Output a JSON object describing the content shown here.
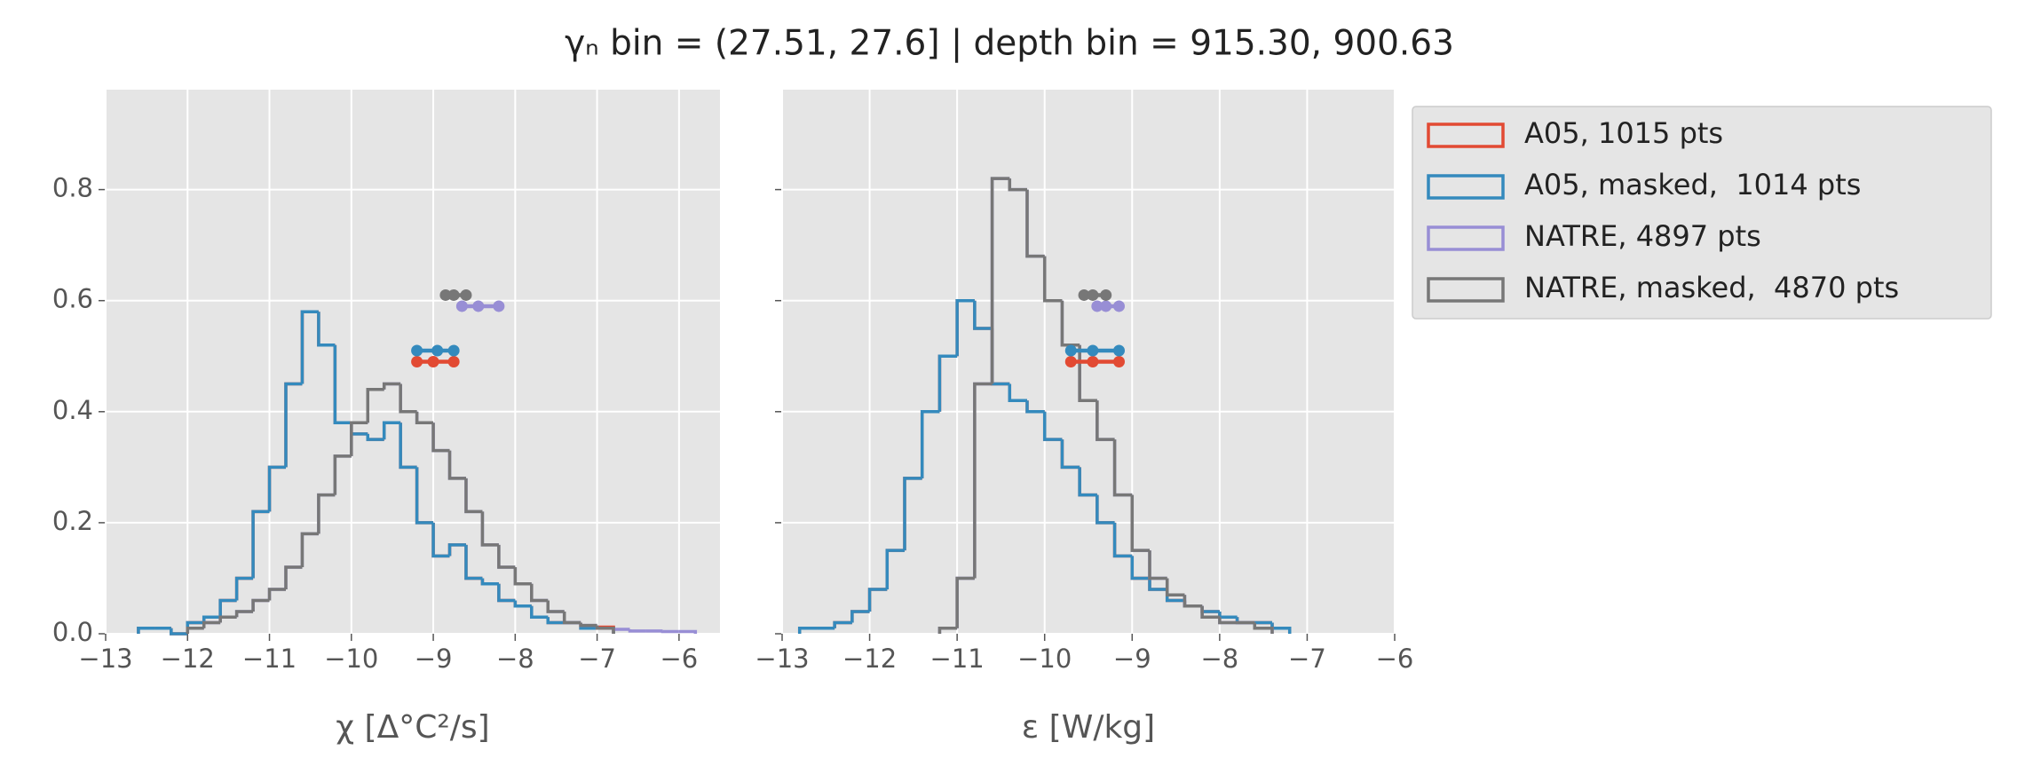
{
  "title": "γₙ bin = (27.51, 27.6] | depth bin = 915.30, 900.63",
  "chart_data": [
    {
      "type": "histogram",
      "xlabel": "χ [Δ°C²/s]",
      "xlim": [
        -13,
        -5.5
      ],
      "xticks": [
        {
          "value": -13,
          "label": "−13"
        },
        {
          "value": -12,
          "label": "−12"
        },
        {
          "value": -11,
          "label": "−11"
        },
        {
          "value": -10,
          "label": "−10"
        },
        {
          "value": -9,
          "label": "−9"
        },
        {
          "value": -8,
          "label": "−8"
        },
        {
          "value": -7,
          "label": "−7"
        },
        {
          "value": -6,
          "label": "−6"
        }
      ],
      "ylim": [
        0,
        0.98
      ],
      "yticks": [
        {
          "value": 0,
          "label": "0.0"
        },
        0.2,
        0.4,
        0.6,
        0.8
      ],
      "grid": true,
      "series": [
        {
          "name": "A05, 1015 pts",
          "color": "#e24a33",
          "bins": [
            -12.6,
            -12.4,
            -12.2,
            -12.0,
            -11.8,
            -11.6,
            -11.4,
            -11.2,
            -11.0,
            -10.8,
            -10.6,
            -10.4,
            -10.2,
            -10.0,
            -9.8,
            -9.6,
            -9.4,
            -9.2,
            -9.0,
            -8.8,
            -8.6,
            -8.4,
            -8.2,
            -8.0,
            -7.8,
            -7.6,
            -7.4,
            -7.2,
            -7.0,
            -6.8
          ],
          "values": [
            0.01,
            0.01,
            0.0,
            0.02,
            0.03,
            0.06,
            0.1,
            0.22,
            0.3,
            0.45,
            0.58,
            0.52,
            0.38,
            0.36,
            0.35,
            0.38,
            0.3,
            0.2,
            0.14,
            0.16,
            0.1,
            0.09,
            0.06,
            0.05,
            0.03,
            0.02,
            0.02,
            0.01,
            0.012
          ]
        },
        {
          "name": "A05, masked,  1014 pts",
          "color": "#348abd",
          "bins": [
            -12.6,
            -12.4,
            -12.2,
            -12.0,
            -11.8,
            -11.6,
            -11.4,
            -11.2,
            -11.0,
            -10.8,
            -10.6,
            -10.4,
            -10.2,
            -10.0,
            -9.8,
            -9.6,
            -9.4,
            -9.2,
            -9.0,
            -8.8,
            -8.6,
            -8.4,
            -8.2,
            -8.0,
            -7.8,
            -7.6,
            -7.4,
            -7.2,
            -7.0,
            -6.8
          ],
          "values": [
            0.01,
            0.01,
            0.0,
            0.02,
            0.03,
            0.06,
            0.1,
            0.22,
            0.3,
            0.45,
            0.58,
            0.52,
            0.38,
            0.36,
            0.35,
            0.38,
            0.3,
            0.2,
            0.14,
            0.16,
            0.1,
            0.09,
            0.06,
            0.05,
            0.03,
            0.02,
            0.02,
            0.01,
            0.01
          ]
        },
        {
          "name": "NATRE, 4897 pts",
          "color": "#988ed5",
          "bins": [
            -12.0,
            -11.8,
            -11.6,
            -11.4,
            -11.2,
            -11.0,
            -10.8,
            -10.6,
            -10.4,
            -10.2,
            -10.0,
            -9.8,
            -9.6,
            -9.4,
            -9.2,
            -9.0,
            -8.8,
            -8.6,
            -8.4,
            -8.2,
            -8.0,
            -7.8,
            -7.6,
            -7.4,
            -7.2,
            -7.0,
            -6.8,
            -6.6,
            -6.4,
            -6.2,
            -6.0,
            -5.8
          ],
          "values": [
            0.01,
            0.02,
            0.03,
            0.04,
            0.06,
            0.08,
            0.12,
            0.18,
            0.25,
            0.32,
            0.38,
            0.44,
            0.45,
            0.4,
            0.38,
            0.33,
            0.28,
            0.22,
            0.16,
            0.12,
            0.09,
            0.06,
            0.04,
            0.02,
            0.015,
            0.01,
            0.008,
            0.005,
            0.005,
            0.004,
            0.004
          ]
        },
        {
          "name": "NATRE, masked,  4870 pts",
          "color": "#777777",
          "bins": [
            -12.0,
            -11.8,
            -11.6,
            -11.4,
            -11.2,
            -11.0,
            -10.8,
            -10.6,
            -10.4,
            -10.2,
            -10.0,
            -9.8,
            -9.6,
            -9.4,
            -9.2,
            -9.0,
            -8.8,
            -8.6,
            -8.4,
            -8.2,
            -8.0,
            -7.8,
            -7.6,
            -7.4,
            -7.2,
            -7.0,
            -6.8
          ],
          "values": [
            0.01,
            0.02,
            0.03,
            0.04,
            0.06,
            0.08,
            0.12,
            0.18,
            0.25,
            0.32,
            0.38,
            0.44,
            0.45,
            0.4,
            0.38,
            0.33,
            0.28,
            0.22,
            0.16,
            0.12,
            0.09,
            0.06,
            0.04,
            0.02,
            0.015,
            0.01
          ]
        }
      ],
      "markers": [
        {
          "color": "#e24a33",
          "x": [
            -9.2,
            -9.0,
            -8.75
          ],
          "y": [
            0.49,
            0.49,
            0.49
          ]
        },
        {
          "color": "#348abd",
          "x": [
            -9.2,
            -8.95,
            -8.75
          ],
          "y": [
            0.51,
            0.51,
            0.51
          ]
        },
        {
          "color": "#988ed5",
          "x": [
            -8.65,
            -8.45,
            -8.2
          ],
          "y": [
            0.59,
            0.59,
            0.59
          ]
        },
        {
          "color": "#777777",
          "x": [
            -8.85,
            -8.75,
            -8.6
          ],
          "y": [
            0.61,
            0.61,
            0.61
          ]
        }
      ]
    },
    {
      "type": "histogram",
      "xlabel": "ε [W/kg]",
      "xlim": [
        -13,
        -6
      ],
      "xticks": [
        {
          "value": -13,
          "label": "−13"
        },
        {
          "value": -12,
          "label": "−12"
        },
        {
          "value": -11,
          "label": "−11"
        },
        {
          "value": -10,
          "label": "−10"
        },
        {
          "value": -9,
          "label": "−9"
        },
        {
          "value": -8,
          "label": "−8"
        },
        {
          "value": -7,
          "label": "−7"
        },
        {
          "value": -6,
          "label": "−6"
        }
      ],
      "ylim": [
        0,
        0.98
      ],
      "grid": true,
      "series": [
        {
          "color": "#e24a33",
          "bins": [
            -12.8,
            -12.6,
            -12.4,
            -12.2,
            -12.0,
            -11.8,
            -11.6,
            -11.4,
            -11.2,
            -11.0,
            -10.8,
            -10.6,
            -10.4,
            -10.2,
            -10.0,
            -9.8,
            -9.6,
            -9.4,
            -9.2,
            -9.0,
            -8.8,
            -8.6,
            -8.4,
            -8.2,
            -8.0,
            -7.8,
            -7.6,
            -7.4,
            -7.2
          ],
          "values": [
            0.01,
            0.01,
            0.02,
            0.04,
            0.08,
            0.15,
            0.28,
            0.4,
            0.5,
            0.6,
            0.55,
            0.45,
            0.42,
            0.4,
            0.35,
            0.3,
            0.25,
            0.2,
            0.14,
            0.1,
            0.08,
            0.06,
            0.05,
            0.04,
            0.03,
            0.02,
            0.02,
            0.01
          ]
        },
        {
          "color": "#348abd",
          "bins": [
            -12.8,
            -12.6,
            -12.4,
            -12.2,
            -12.0,
            -11.8,
            -11.6,
            -11.4,
            -11.2,
            -11.0,
            -10.8,
            -10.6,
            -10.4,
            -10.2,
            -10.0,
            -9.8,
            -9.6,
            -9.4,
            -9.2,
            -9.0,
            -8.8,
            -8.6,
            -8.4,
            -8.2,
            -8.0,
            -7.8,
            -7.6,
            -7.4,
            -7.2
          ],
          "values": [
            0.01,
            0.01,
            0.02,
            0.04,
            0.08,
            0.15,
            0.28,
            0.4,
            0.5,
            0.6,
            0.55,
            0.45,
            0.42,
            0.4,
            0.35,
            0.3,
            0.25,
            0.2,
            0.14,
            0.1,
            0.08,
            0.06,
            0.05,
            0.04,
            0.03,
            0.02,
            0.02,
            0.01
          ]
        },
        {
          "color": "#988ed5",
          "bins": [
            -11.2,
            -11.0,
            -10.8,
            -10.6,
            -10.4,
            -10.2,
            -10.0,
            -9.8,
            -9.6,
            -9.4,
            -9.2,
            -9.0,
            -8.8,
            -8.6,
            -8.4,
            -8.2,
            -8.0,
            -7.8,
            -7.6,
            -7.4
          ],
          "values": [
            0.01,
            0.1,
            0.45,
            0.82,
            0.8,
            0.68,
            0.6,
            0.52,
            0.42,
            0.35,
            0.25,
            0.15,
            0.1,
            0.07,
            0.05,
            0.03,
            0.02,
            0.02,
            0.01
          ]
        },
        {
          "color": "#777777",
          "bins": [
            -11.2,
            -11.0,
            -10.8,
            -10.6,
            -10.4,
            -10.2,
            -10.0,
            -9.8,
            -9.6,
            -9.4,
            -9.2,
            -9.0,
            -8.8,
            -8.6,
            -8.4,
            -8.2,
            -8.0,
            -7.8,
            -7.6,
            -7.4
          ],
          "values": [
            0.01,
            0.1,
            0.45,
            0.82,
            0.8,
            0.68,
            0.6,
            0.52,
            0.42,
            0.35,
            0.25,
            0.15,
            0.1,
            0.07,
            0.05,
            0.03,
            0.02,
            0.02,
            0.01
          ]
        }
      ],
      "markers": [
        {
          "color": "#e24a33",
          "x": [
            -9.7,
            -9.45,
            -9.15
          ],
          "y": [
            0.49,
            0.49,
            0.49
          ]
        },
        {
          "color": "#348abd",
          "x": [
            -9.7,
            -9.45,
            -9.15
          ],
          "y": [
            0.51,
            0.51,
            0.51
          ]
        },
        {
          "color": "#988ed5",
          "x": [
            -9.4,
            -9.3,
            -9.15
          ],
          "y": [
            0.59,
            0.59,
            0.59
          ]
        },
        {
          "color": "#777777",
          "x": [
            -9.55,
            -9.45,
            -9.3
          ],
          "y": [
            0.61,
            0.61,
            0.61
          ]
        }
      ]
    }
  ]
}
